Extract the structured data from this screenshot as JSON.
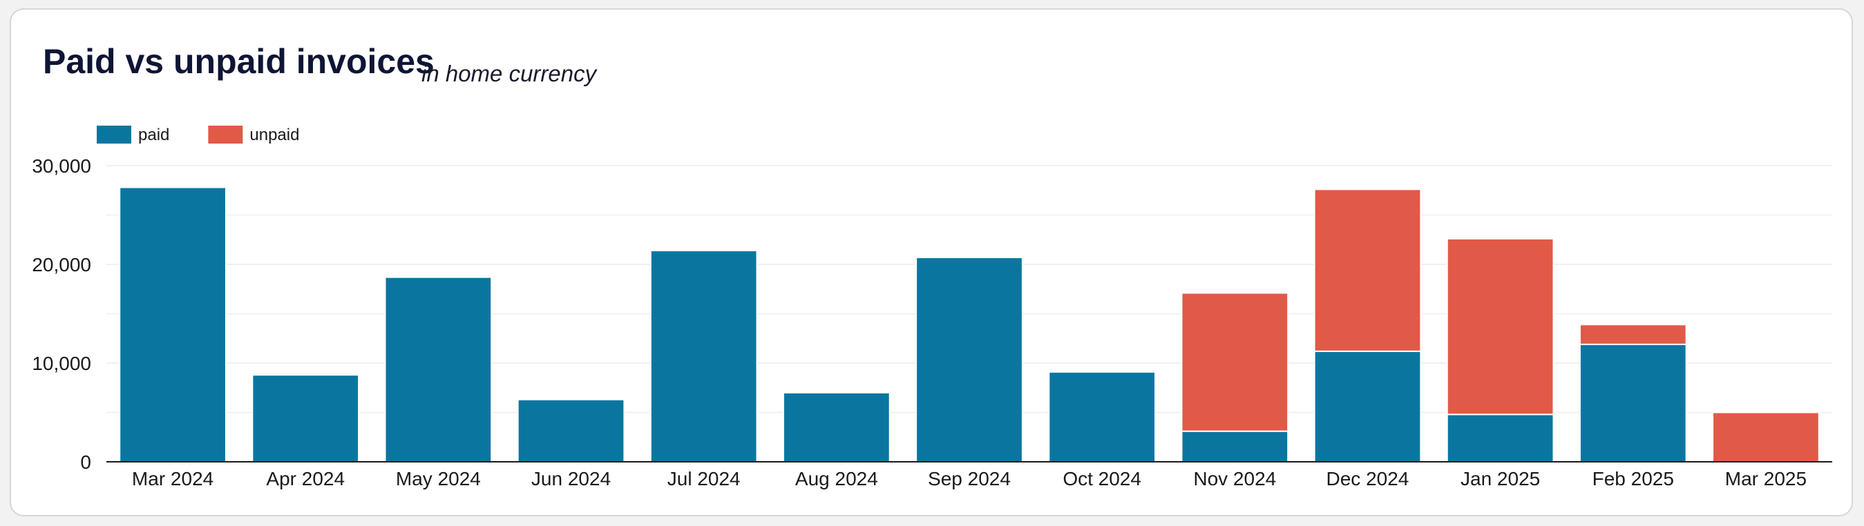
{
  "header": {
    "title": "Paid vs unpaid invoices",
    "subtitle": "in home currency"
  },
  "colors": {
    "paid": "#0a76a0",
    "unpaid": "#e05a47",
    "grid": "#ececec",
    "axis": "#1a1a1a",
    "text": "#1a1a1a"
  },
  "chart_data": {
    "type": "bar",
    "stacked": true,
    "categories": [
      "Mar 2024",
      "Apr 2024",
      "May 2024",
      "Jun 2024",
      "Jul 2024",
      "Aug 2024",
      "Sep 2024",
      "Oct 2024",
      "Nov 2024",
      "Dec 2024",
      "Jan 2025",
      "Feb 2025",
      "Mar 2025"
    ],
    "series": [
      {
        "name": "paid",
        "values": [
          27800,
          8800,
          18700,
          6300,
          21400,
          7000,
          20700,
          9100,
          3100,
          11200,
          4800,
          11900,
          0
        ]
      },
      {
        "name": "unpaid",
        "values": [
          0,
          0,
          0,
          0,
          0,
          0,
          0,
          0,
          14000,
          16400,
          17800,
          2000,
          5000
        ]
      }
    ],
    "ylim": [
      0,
      30000
    ],
    "yticks": [
      0,
      10000,
      20000,
      30000
    ],
    "ytick_labels": [
      "0",
      "10,000",
      "20,000",
      "30,000"
    ],
    "grid": true,
    "legend": "top-left"
  }
}
